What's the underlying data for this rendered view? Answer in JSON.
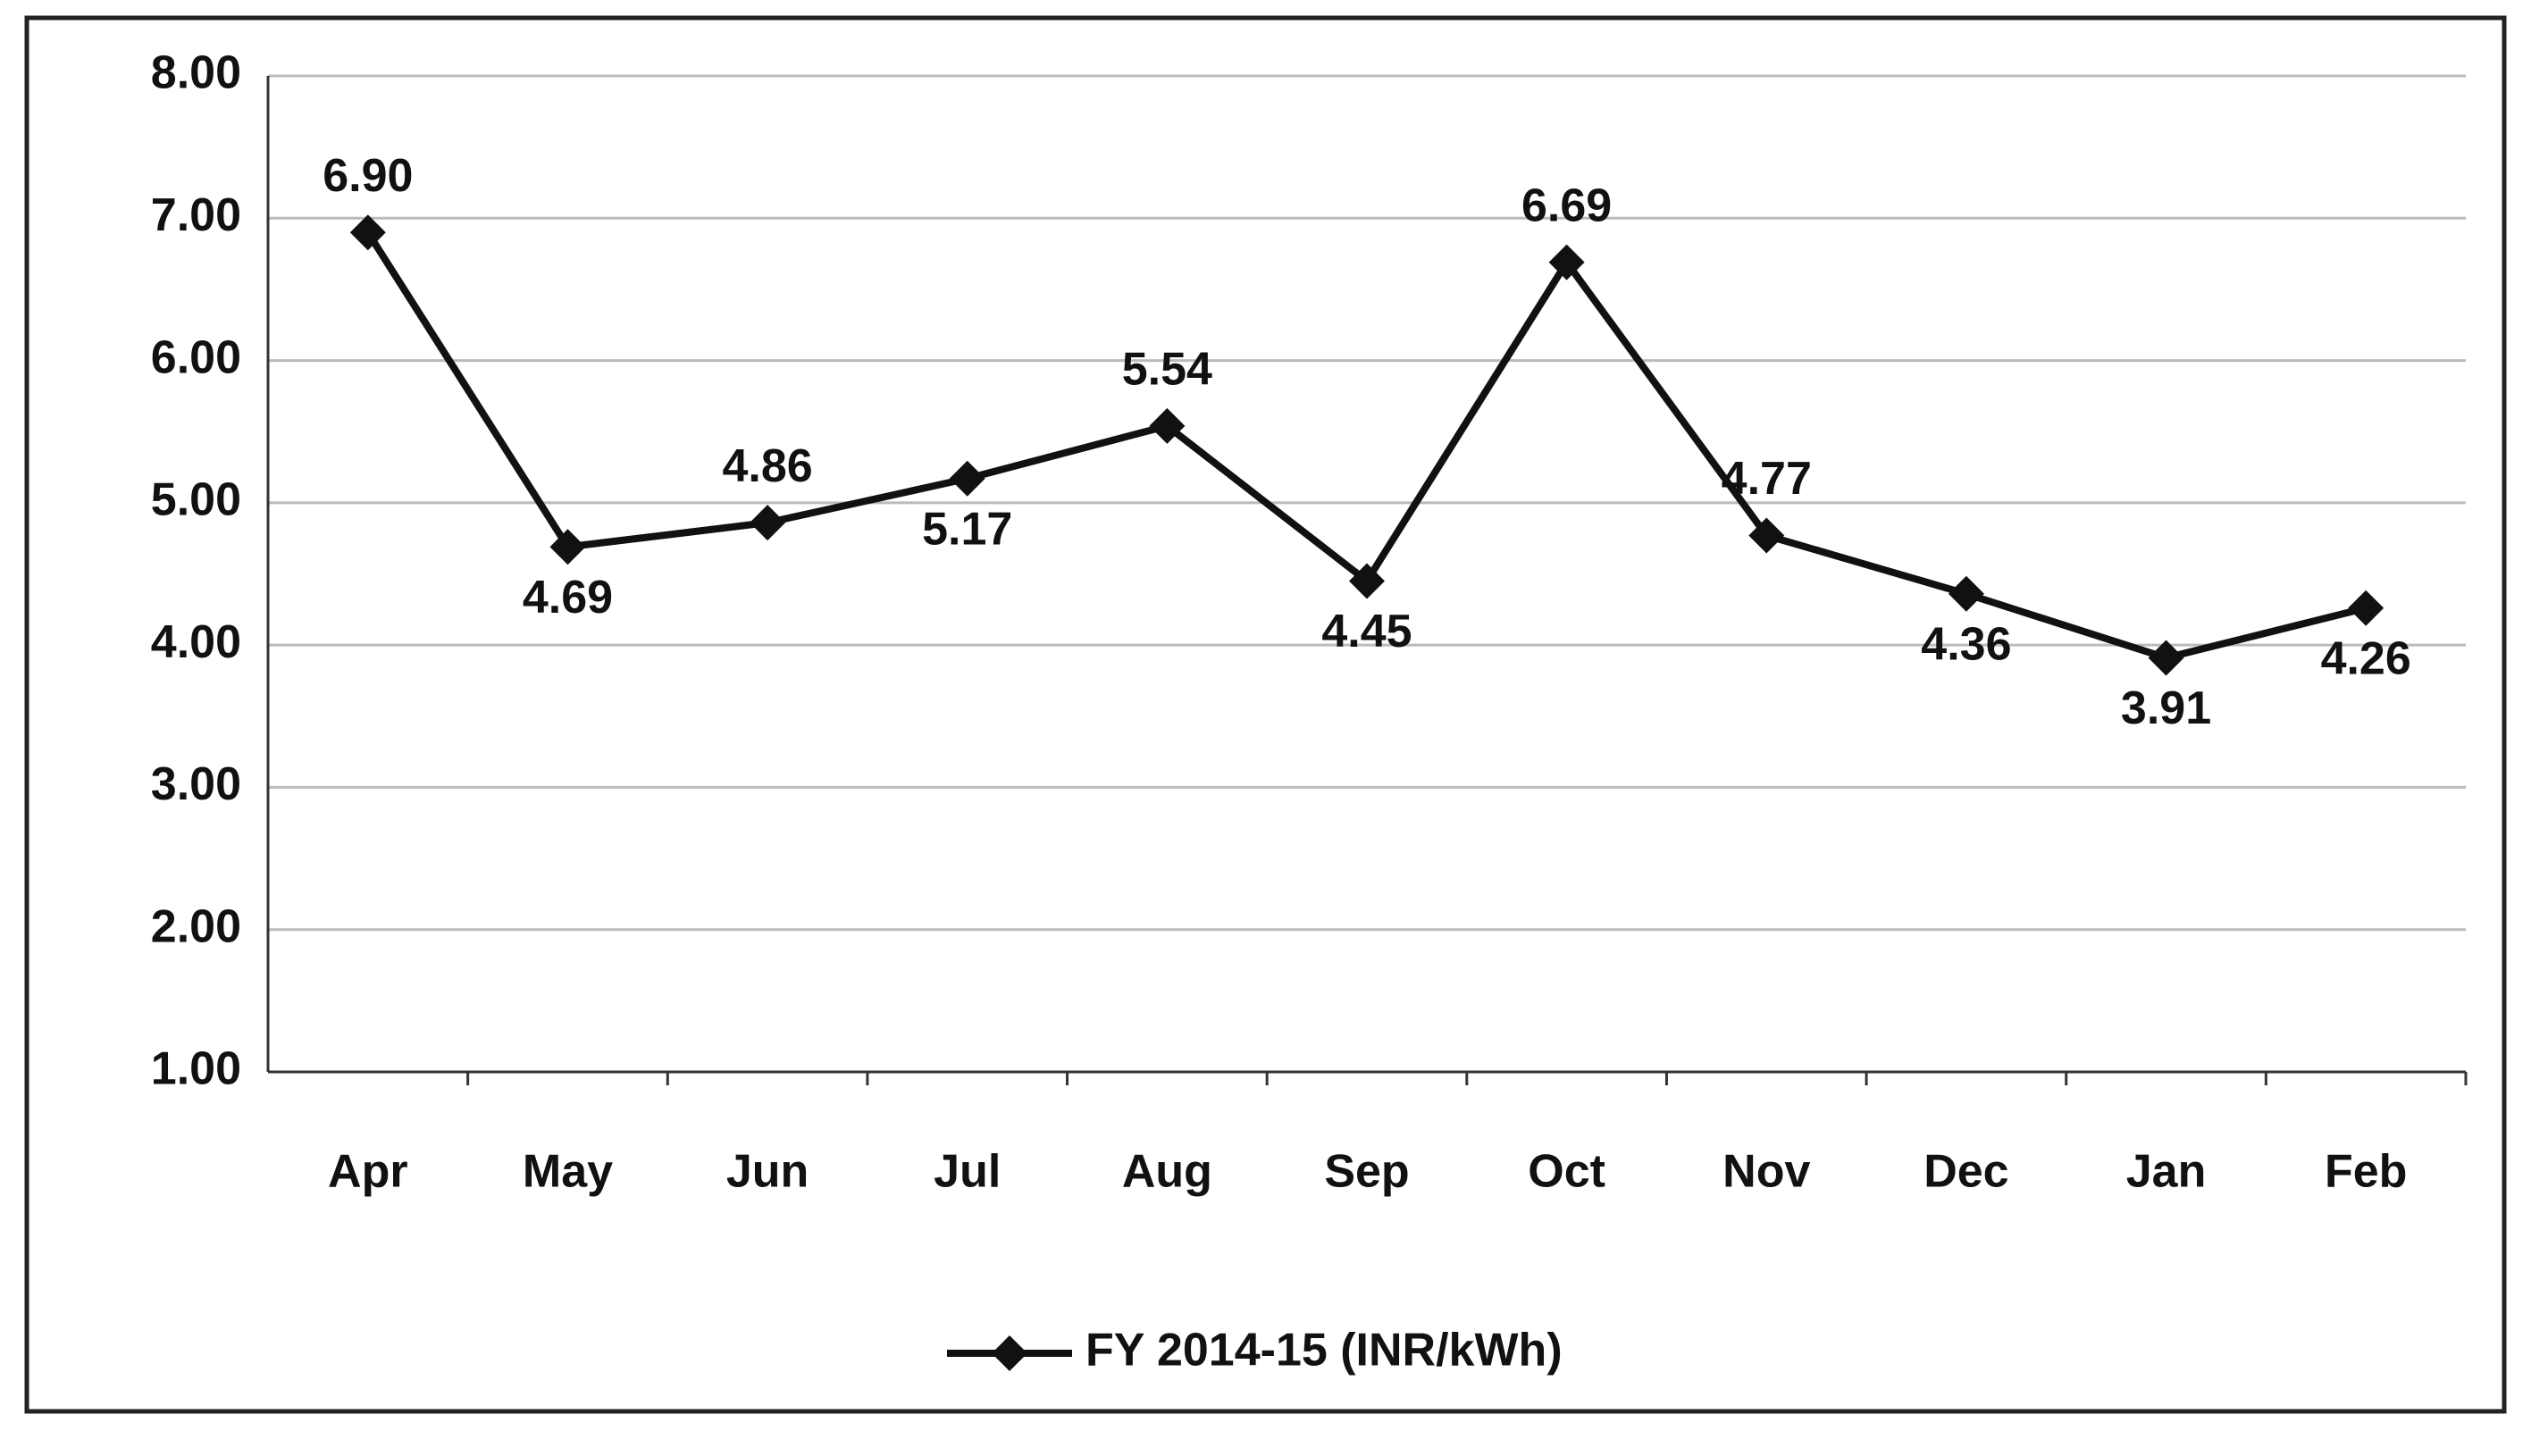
{
  "chart_data": {
    "type": "line",
    "categories": [
      "Apr",
      "May",
      "Jun",
      "Jul",
      "Aug",
      "Sep",
      "Oct",
      "Nov",
      "Dec",
      "Jan",
      "Feb"
    ],
    "series": [
      {
        "name": "FY 2014-15 (INR/kWh)",
        "color": "#111111",
        "values": [
          6.9,
          4.69,
          4.86,
          5.17,
          5.54,
          4.45,
          6.69,
          4.77,
          4.36,
          3.91,
          4.26
        ],
        "value_labels": [
          "6.90",
          "4.69",
          "4.86",
          "5.17",
          "5.54",
          "4.45",
          "6.69",
          "4.77",
          "4.36",
          "3.91",
          "4.26"
        ]
      }
    ],
    "ylim": [
      1,
      8
    ],
    "yticks": [
      {
        "value": 1,
        "label": "1.00"
      },
      {
        "value": 2,
        "label": "2.00"
      },
      {
        "value": 3,
        "label": "3.00"
      },
      {
        "value": 4,
        "label": "4.00"
      },
      {
        "value": 5,
        "label": "5.00"
      },
      {
        "value": 6,
        "label": "6.00"
      },
      {
        "value": 7,
        "label": "7.00"
      },
      {
        "value": 8,
        "label": "8.00"
      }
    ],
    "grid": true,
    "legend": "bottom"
  }
}
